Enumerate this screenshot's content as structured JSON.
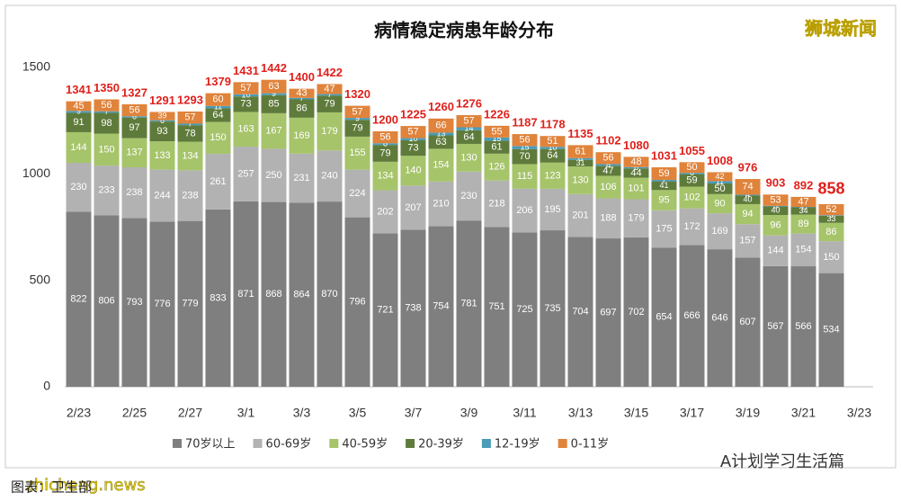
{
  "chart_data": {
    "type": "stacked_bar",
    "title": "病情稳定病患年龄分布",
    "categories": [
      "2/23",
      null,
      "2/25",
      null,
      "2/27",
      null,
      "3/1",
      null,
      "3/3",
      null,
      "3/5",
      null,
      "3/7",
      null,
      "3/9",
      null,
      "3/11",
      null,
      "3/13",
      null,
      "3/15",
      null,
      "3/17",
      null,
      "3/19",
      null,
      "3/21",
      null,
      "3/23"
    ],
    "series": [
      {
        "name": "70岁以上",
        "color": "#7f7f7f",
        "values": [
          822,
          806,
          793,
          776,
          779,
          833,
          871,
          868,
          864,
          870,
          796,
          721,
          738,
          754,
          781,
          751,
          725,
          735,
          704,
          697,
          702,
          654,
          666,
          646,
          607,
          567,
          566,
          534,
          null
        ]
      },
      {
        "name": "60-69岁",
        "color": "#b2b2b2",
        "values": [
          230,
          233,
          238,
          244,
          238,
          261,
          257,
          250,
          231,
          240,
          224,
          202,
          207,
          210,
          230,
          218,
          206,
          195,
          201,
          188,
          179,
          175,
          172,
          169,
          157,
          144,
          154,
          150,
          null
        ]
      },
      {
        "name": "40-59岁",
        "color": "#a6c46a",
        "values": [
          144,
          150,
          137,
          133,
          134,
          150,
          163,
          167,
          169,
          179,
          155,
          134,
          140,
          154,
          130,
          126,
          115,
          123,
          130,
          106,
          101,
          95,
          102,
          90,
          94,
          96,
          89,
          86,
          null
        ]
      },
      {
        "name": "20-39岁",
        "color": "#5f7b3b",
        "values": [
          91,
          98,
          97,
          93,
          78,
          64,
          73,
          85,
          86,
          79,
          79,
          79,
          73,
          63,
          64,
          61,
          70,
          64,
          31,
          47,
          44,
          41,
          59,
          50,
          40,
          40,
          34,
          33,
          null
        ]
      },
      {
        "name": "12-19岁",
        "color": "#4b9cb6",
        "values": [
          9,
          7,
          6,
          6,
          7,
          11,
          10,
          9,
          7,
          7,
          9,
          8,
          10,
          13,
          14,
          15,
          15,
          10,
          8,
          8,
          6,
          7,
          6,
          11,
          4,
          3,
          2,
          3,
          null
        ]
      },
      {
        "name": "0-11岁",
        "color": "#e0833b",
        "values": [
          45,
          56,
          56,
          39,
          57,
          60,
          57,
          63,
          43,
          47,
          57,
          56,
          57,
          66,
          57,
          55,
          56,
          51,
          61,
          56,
          48,
          59,
          50,
          42,
          74,
          53,
          47,
          52,
          null
        ]
      }
    ],
    "totals": [
      1341,
      1350,
      1327,
      1291,
      1293,
      1379,
      1431,
      1442,
      1400,
      1422,
      1320,
      1200,
      1225,
      1260,
      1276,
      1226,
      1187,
      1178,
      1135,
      1102,
      1080,
      1031,
      1055,
      1008,
      976,
      903,
      892,
      858,
      null
    ],
    "ylim": [
      0,
      1500
    ],
    "yticks": [
      0,
      500,
      1000,
      1500
    ],
    "grid": false,
    "legend": "bottom"
  },
  "overlay": {
    "watermark": "狮城新闻",
    "account": "A计划学习生活篇",
    "site": "zhicheng.news",
    "caption": "图表：卫生部"
  }
}
